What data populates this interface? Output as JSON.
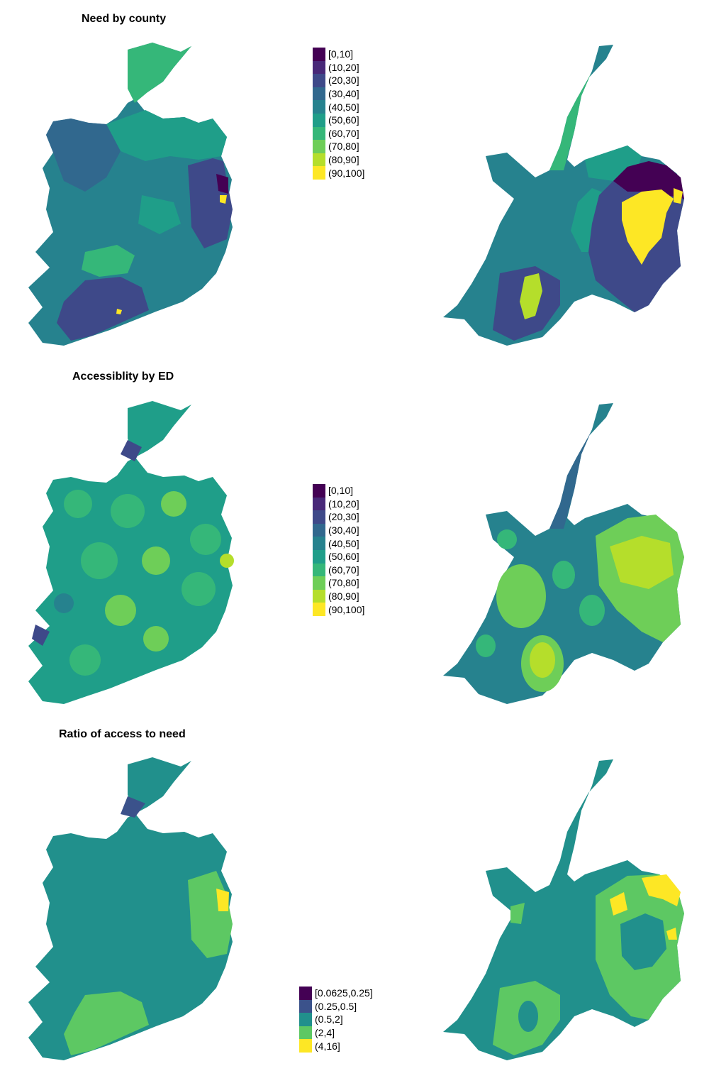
{
  "palette10": [
    "#440154",
    "#482878",
    "#3e4989",
    "#31688e",
    "#26828e",
    "#1f9e89",
    "#35b779",
    "#6ece58",
    "#b5de2b",
    "#fde725"
  ],
  "palette5": [
    "#440154",
    "#3b528b",
    "#21908c",
    "#5dc863",
    "#fde725"
  ],
  "panels": [
    {
      "title": "Need by county",
      "legend": [
        "[0,10]",
        "(10,20]",
        "(20,30]",
        "(30,40]",
        "(40,50]",
        "(50,60]",
        "(60,70]",
        "(70,80]",
        "(80,90]",
        "(90,100]"
      ]
    },
    {
      "title": "Accessiblity by ED",
      "legend": [
        "[0,10]",
        "(10,20]",
        "(20,30]",
        "(30,40]",
        "(40,50]",
        "(50,60]",
        "(60,70]",
        "(70,80]",
        "(80,90]",
        "(90,100]"
      ]
    },
    {
      "title": "Ratio of access to need",
      "legend": [
        "[0.0625,0.25]",
        "(0.25,0.5]",
        "(0.5,2]",
        "(2,4]",
        "(4,16]"
      ]
    }
  ]
}
